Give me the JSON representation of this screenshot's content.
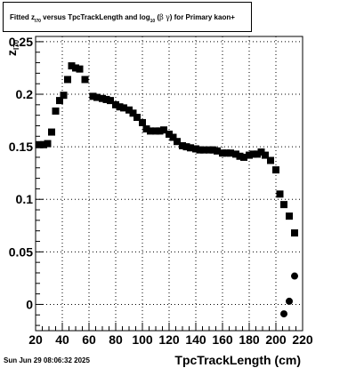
{
  "header": {
    "title_parts": [
      "Fitted  z",
      "I70",
      "  versus TpcTrackLength and log",
      "10",
      " (",
      "β",
      " ",
      "γ",
      ") for Primary kaon+"
    ],
    "timestamp": "Sun Jun 29 08:06:32 2025"
  },
  "chart_data": {
    "type": "scatter",
    "title": "Fitted z_I70 versus TpcTrackLength and log10(βγ) for Primary kaon+",
    "xlabel": "TpcTrackLength (cm)",
    "ylabel": "z_I70",
    "xlim": [
      20,
      220
    ],
    "ylim": [
      -0.025,
      0.255
    ],
    "x_ticks": [
      20,
      40,
      60,
      80,
      100,
      120,
      140,
      160,
      180,
      200,
      220
    ],
    "x_tick_labels": [
      "20",
      "40",
      "60",
      "80",
      "100",
      "120",
      "140",
      "160",
      "180",
      "200",
      "220"
    ],
    "y_ticks": [
      0,
      0.05,
      0.1,
      0.15,
      0.2,
      0.25
    ],
    "y_tick_labels": [
      "0",
      "0.05",
      "0.1",
      "0.15",
      "0.2",
      "0.25"
    ],
    "grid": true,
    "marker": "square",
    "color": "#000000",
    "points": [
      {
        "x": 23,
        "y": 0.152
      },
      {
        "x": 26,
        "y": 0.152
      },
      {
        "x": 29,
        "y": 0.153
      },
      {
        "x": 32,
        "y": 0.164
      },
      {
        "x": 35,
        "y": 0.184
      },
      {
        "x": 38,
        "y": 0.194
      },
      {
        "x": 41,
        "y": 0.199
      },
      {
        "x": 44,
        "y": 0.214
      },
      {
        "x": 47,
        "y": 0.227
      },
      {
        "x": 50,
        "y": 0.225
      },
      {
        "x": 53,
        "y": 0.224
      },
      {
        "x": 57,
        "y": 0.214
      },
      {
        "x": 63,
        "y": 0.198
      },
      {
        "x": 66,
        "y": 0.197
      },
      {
        "x": 70,
        "y": 0.196
      },
      {
        "x": 73,
        "y": 0.195
      },
      {
        "x": 76,
        "y": 0.194
      },
      {
        "x": 80,
        "y": 0.19
      },
      {
        "x": 83,
        "y": 0.188
      },
      {
        "x": 86,
        "y": 0.187
      },
      {
        "x": 90,
        "y": 0.185
      },
      {
        "x": 93,
        "y": 0.182
      },
      {
        "x": 96,
        "y": 0.178
      },
      {
        "x": 100,
        "y": 0.173
      },
      {
        "x": 103,
        "y": 0.167
      },
      {
        "x": 106,
        "y": 0.165
      },
      {
        "x": 110,
        "y": 0.165
      },
      {
        "x": 113,
        "y": 0.165
      },
      {
        "x": 116,
        "y": 0.166
      },
      {
        "x": 120,
        "y": 0.162
      },
      {
        "x": 123,
        "y": 0.159
      },
      {
        "x": 126,
        "y": 0.155
      },
      {
        "x": 130,
        "y": 0.151
      },
      {
        "x": 133,
        "y": 0.15
      },
      {
        "x": 136,
        "y": 0.149
      },
      {
        "x": 140,
        "y": 0.148
      },
      {
        "x": 143,
        "y": 0.147
      },
      {
        "x": 146,
        "y": 0.147
      },
      {
        "x": 150,
        "y": 0.147
      },
      {
        "x": 153,
        "y": 0.147
      },
      {
        "x": 156,
        "y": 0.146
      },
      {
        "x": 160,
        "y": 0.144
      },
      {
        "x": 163,
        "y": 0.144
      },
      {
        "x": 166,
        "y": 0.144
      },
      {
        "x": 170,
        "y": 0.143
      },
      {
        "x": 173,
        "y": 0.141
      },
      {
        "x": 176,
        "y": 0.14
      },
      {
        "x": 180,
        "y": 0.142
      },
      {
        "x": 183,
        "y": 0.143
      },
      {
        "x": 186,
        "y": 0.143
      },
      {
        "x": 189,
        "y": 0.145
      },
      {
        "x": 192,
        "y": 0.142
      },
      {
        "x": 196,
        "y": 0.137
      },
      {
        "x": 200,
        "y": 0.128
      },
      {
        "x": 203,
        "y": 0.105
      },
      {
        "x": 206,
        "y": 0.095
      },
      {
        "x": 210,
        "y": 0.084
      },
      {
        "x": 214,
        "y": 0.068
      }
    ],
    "circle_points": [
      {
        "x": 206,
        "y": -0.009
      },
      {
        "x": 210,
        "y": 0.003
      },
      {
        "x": 214,
        "y": 0.027
      }
    ]
  }
}
